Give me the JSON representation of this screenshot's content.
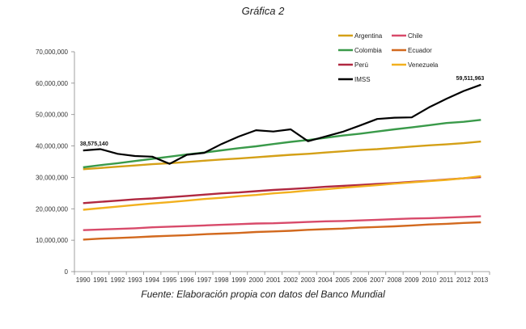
{
  "title": "Gráfica 2",
  "caption": "Fuente: Elaboración propia con datos del Banco Mundial",
  "chart_data": {
    "type": "line",
    "title": "Gráfica 2",
    "xlabel": "",
    "ylabel": "",
    "ylim": [
      0,
      70000000
    ],
    "yticks": [
      0,
      10000000,
      20000000,
      30000000,
      40000000,
      50000000,
      60000000,
      70000000
    ],
    "ytick_labels": [
      "0",
      "10,000,000",
      "20,000,000",
      "30,000,000",
      "40,000,000",
      "50,000,000",
      "60,000,000",
      "70,000,000"
    ],
    "x": [
      "1990",
      "1991",
      "1992",
      "1993",
      "1994",
      "1995",
      "1996",
      "1997",
      "1998",
      "1999",
      "2000",
      "2001",
      "2002",
      "2003",
      "2004",
      "2005",
      "2006",
      "2007",
      "2008",
      "2009",
      "2010",
      "2011",
      "2012",
      "2013"
    ],
    "legend_position": "top-right",
    "series": [
      {
        "name": "Argentina",
        "color": "#d4a017",
        "values": [
          32600000,
          33000000,
          33400000,
          33800000,
          34200000,
          34500000,
          34900000,
          35300000,
          35700000,
          36000000,
          36400000,
          36800000,
          37200000,
          37500000,
          37900000,
          38300000,
          38700000,
          39000000,
          39400000,
          39800000,
          40200000,
          40500000,
          40900000,
          41400000
        ]
      },
      {
        "name": "Chile",
        "color": "#d84a6a",
        "values": [
          13200000,
          13400000,
          13600000,
          13800000,
          14100000,
          14300000,
          14500000,
          14700000,
          14900000,
          15100000,
          15300000,
          15400000,
          15600000,
          15800000,
          16000000,
          16100000,
          16300000,
          16500000,
          16700000,
          16900000,
          17000000,
          17200000,
          17400000,
          17600000
        ]
      },
      {
        "name": "Colombia",
        "color": "#3a9a4a",
        "values": [
          33200000,
          33900000,
          34500000,
          35200000,
          35900000,
          36600000,
          37300000,
          37900000,
          38600000,
          39300000,
          39900000,
          40600000,
          41300000,
          41900000,
          42600000,
          43300000,
          43900000,
          44600000,
          45300000,
          45900000,
          46600000,
          47300000,
          47700000,
          48300000
        ]
      },
      {
        "name": "Ecuador",
        "color": "#d2691e",
        "values": [
          10200000,
          10500000,
          10700000,
          10900000,
          11200000,
          11400000,
          11600000,
          11900000,
          12100000,
          12300000,
          12600000,
          12800000,
          13000000,
          13300000,
          13500000,
          13700000,
          14000000,
          14200000,
          14400000,
          14700000,
          15000000,
          15200000,
          15500000,
          15700000
        ]
      },
      {
        "name": "Perú",
        "color": "#b02840",
        "values": [
          21800000,
          22200000,
          22600000,
          23000000,
          23300000,
          23700000,
          24100000,
          24500000,
          24900000,
          25200000,
          25600000,
          26000000,
          26300000,
          26600000,
          27000000,
          27300000,
          27600000,
          27900000,
          28200000,
          28600000,
          28900000,
          29300000,
          29700000,
          30100000
        ]
      },
      {
        "name": "Venezuela",
        "color": "#f2b01e",
        "values": [
          19700000,
          20200000,
          20700000,
          21200000,
          21700000,
          22100000,
          22600000,
          23100000,
          23500000,
          24000000,
          24400000,
          24900000,
          25300000,
          25800000,
          26200000,
          26700000,
          27100000,
          27500000,
          28000000,
          28400000,
          28800000,
          29200000,
          29700000,
          30400000
        ]
      },
      {
        "name": "IMSS",
        "color": "#000000",
        "values": [
          38575140,
          39000000,
          37500000,
          36800000,
          36600000,
          34300000,
          37200000,
          37800000,
          40600000,
          43000000,
          45000000,
          44600000,
          45300000,
          41500000,
          43000000,
          44500000,
          46500000,
          48600000,
          49000000,
          49100000,
          52300000,
          55000000,
          57500000,
          59511963
        ]
      }
    ],
    "annotations": [
      {
        "series": "IMSS",
        "x": "1990",
        "text": "38,575,140"
      },
      {
        "series": "IMSS",
        "x": "2013",
        "text": "59,511,963"
      }
    ]
  }
}
